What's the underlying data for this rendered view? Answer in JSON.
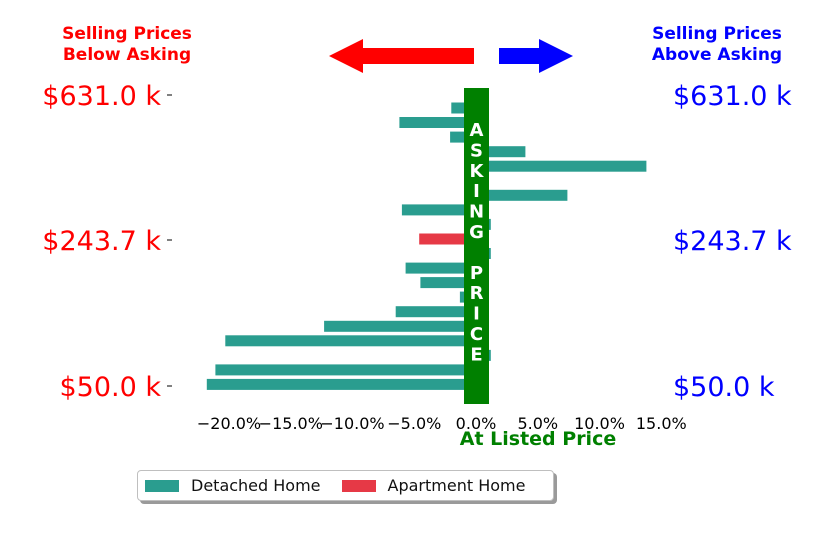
{
  "header": {
    "left_title": [
      "Selling Prices",
      "Below Asking"
    ],
    "right_title": [
      "Selling Prices",
      "Above Asking"
    ],
    "left_color": "#ff0000",
    "right_color": "#0000ff"
  },
  "arrows": {
    "left": "left-arrow",
    "right": "right-arrow"
  },
  "chart_data": {
    "type": "bar",
    "orientation": "horizontal",
    "xlabel": "At Listed Price",
    "xlabel_color": "#008000",
    "xlim": [
      -24,
      17
    ],
    "x_ticks": [
      -20,
      -15,
      -10,
      -5,
      0,
      5,
      10,
      15
    ],
    "x_tick_labels": [
      "−20.0%",
      "−15.0%",
      "−10.0%",
      "−5.0%",
      "0.0%",
      "5.0%",
      "10.0%",
      "15.0%"
    ],
    "y_tick_labels_left": [
      "$631.0 k",
      "$243.7 k",
      "$50.0 k"
    ],
    "y_tick_labels_right": [
      "$631.0 k",
      "$243.7 k",
      "$50.0 k"
    ],
    "center_band_label": "ASKING PRICE",
    "center_band_color": "#008000",
    "series": [
      {
        "name": "Detached Home",
        "color": "#2a9d8f"
      },
      {
        "name": "Apartment Home",
        "color": "#e63946"
      }
    ],
    "bars": [
      {
        "value": -2.0,
        "series": 0
      },
      {
        "value": -6.2,
        "series": 0
      },
      {
        "value": -2.1,
        "series": 0
      },
      {
        "value": 4.0,
        "series": 0
      },
      {
        "value": 13.8,
        "series": 0
      },
      {
        "value": -0.8,
        "series": 0
      },
      {
        "value": 7.4,
        "series": 0
      },
      {
        "value": -6.0,
        "series": 0
      },
      {
        "value": 1.2,
        "series": 0
      },
      {
        "value": -4.6,
        "series": 1
      },
      {
        "value": 1.2,
        "series": 0
      },
      {
        "value": -5.7,
        "series": 0
      },
      {
        "value": -4.5,
        "series": 0
      },
      {
        "value": -1.3,
        "series": 0
      },
      {
        "value": -6.5,
        "series": 0
      },
      {
        "value": -12.3,
        "series": 0
      },
      {
        "value": -20.3,
        "series": 0
      },
      {
        "value": 1.2,
        "series": 0
      },
      {
        "value": -21.1,
        "series": 0
      },
      {
        "value": -21.8,
        "series": 0
      }
    ]
  },
  "legend": {
    "items": [
      {
        "label": "Detached Home",
        "color": "#2a9d8f"
      },
      {
        "label": "Apartment Home",
        "color": "#e63946"
      }
    ]
  }
}
